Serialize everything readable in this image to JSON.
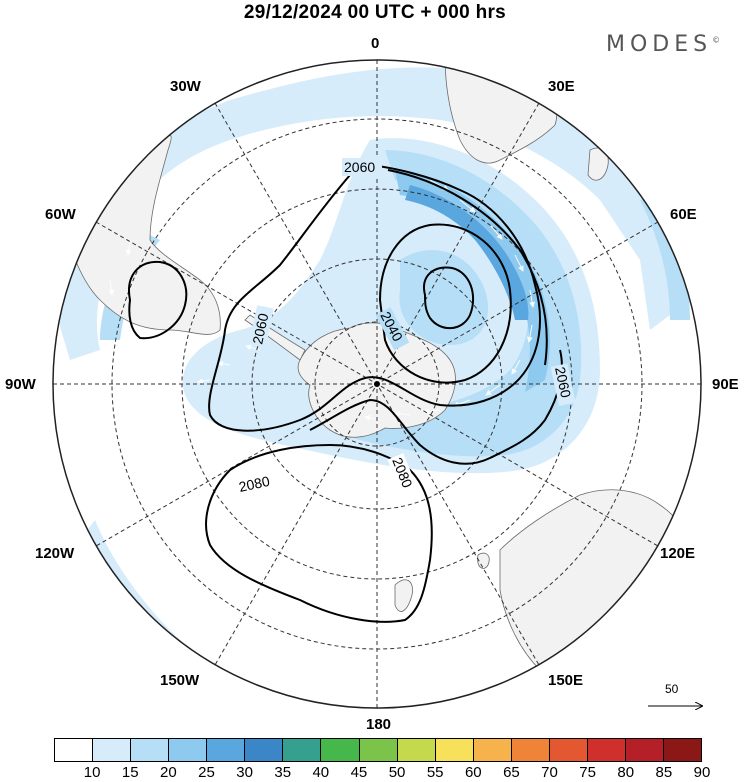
{
  "title": "29/12/2024  00 UTC  + 000 hrs",
  "brand": "MODES",
  "brand_mark": "©",
  "longitude_labels": {
    "lon_0": "0",
    "lon_30e": "30E",
    "lon_60e": "60E",
    "lon_90e": "90E",
    "lon_120e": "120E",
    "lon_150e": "150E",
    "lon_180": "180",
    "lon_150w": "150W",
    "lon_120w": "120W",
    "lon_90w": "90W",
    "lon_60w": "60W",
    "lon_30w": "30W"
  },
  "contours": {
    "c2040": "2040",
    "c2060_a": "2060",
    "c2060_b": "2060",
    "c2060_c": "2060",
    "c2080_a": "2080",
    "c2080_b": "2080"
  },
  "reference_vector": "50",
  "colorbar": {
    "labels": [
      "10",
      "15",
      "20",
      "25",
      "30",
      "35",
      "40",
      "45",
      "50",
      "55",
      "60",
      "65",
      "70",
      "75",
      "80",
      "85",
      "90"
    ],
    "colors": [
      "#ffffff",
      "#d6ecfb",
      "#b6dff7",
      "#8ec9ef",
      "#5aa7e0",
      "#3b86c6",
      "#36a08f",
      "#45b74b",
      "#7cc34a",
      "#c4d94b",
      "#f7e15a",
      "#f6b34b",
      "#ef8438",
      "#e35830",
      "#d0302b",
      "#b51f27",
      "#8c1717"
    ]
  },
  "projection": "polar stereographic, south pole"
}
